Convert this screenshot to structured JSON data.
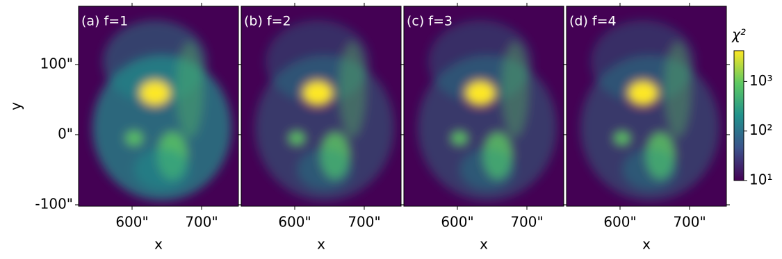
{
  "chart_data": {
    "panels": [
      {
        "type": "heatmap",
        "title": "(a) f=1",
        "xlabel": "x",
        "ylabel": "y",
        "xlim": [
          523,
          753
        ],
        "xticks": [
          {
            "value": 600,
            "label": "600\""
          },
          {
            "value": 700,
            "label": "700\""
          }
        ],
        "ylim": [
          -102,
          183
        ],
        "yticks": [
          {
            "value": -100,
            "label": "-100\""
          },
          {
            "value": 0,
            "label": "0\""
          },
          {
            "value": 100,
            "label": "100\""
          }
        ]
      },
      {
        "type": "heatmap",
        "title": "(b) f=2",
        "xlabel": "x",
        "xlim": [
          523,
          753
        ],
        "xticks": [
          {
            "value": 600,
            "label": "600\""
          },
          {
            "value": 700,
            "label": "700\""
          }
        ],
        "ylim": [
          -102,
          183
        ],
        "yticks": [
          -100,
          0,
          100
        ]
      },
      {
        "type": "heatmap",
        "title": "(c) f=3",
        "xlabel": "x",
        "xlim": [
          523,
          753
        ],
        "xticks": [
          {
            "value": 600,
            "label": "600\""
          },
          {
            "value": 700,
            "label": "700\""
          }
        ],
        "ylim": [
          -102,
          183
        ],
        "yticks": [
          -100,
          0,
          100
        ]
      },
      {
        "type": "heatmap",
        "title": "(d) f=4",
        "xlabel": "x",
        "xlim": [
          523,
          753
        ],
        "xticks": [
          {
            "value": 600,
            "label": "600\""
          },
          {
            "value": 700,
            "label": "700\""
          }
        ],
        "ylim": [
          -102,
          183
        ],
        "yticks": [
          -100,
          0,
          100
        ]
      }
    ],
    "colorbar": {
      "label": "χ²",
      "scale": "log",
      "clim": [
        10,
        4200
      ],
      "ticks": [
        {
          "value": 10,
          "label": "10¹"
        },
        {
          "value": 100,
          "label": "10²"
        },
        {
          "value": 1000,
          "label": "10³"
        }
      ],
      "colormap": [
        "#440154",
        "#3b528b",
        "#21918c",
        "#5ec962",
        "#fde725"
      ]
    }
  }
}
